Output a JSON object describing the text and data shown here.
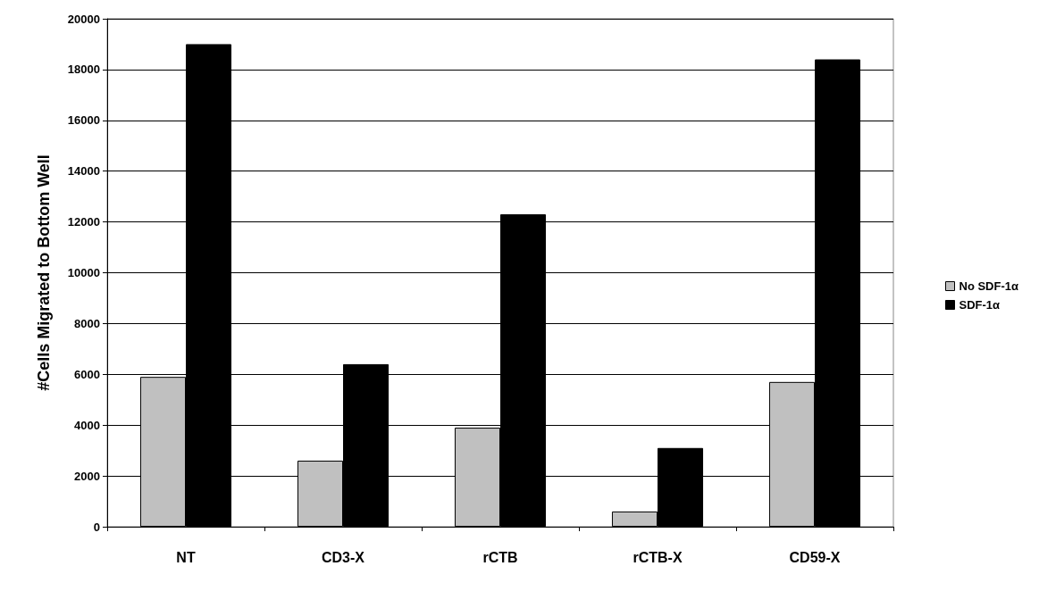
{
  "chart_data": {
    "type": "bar",
    "ylabel": "#Cells Migrated to Bottom Well",
    "categories": [
      "NT",
      "CD3-X",
      "rCTB",
      "rCTB-X",
      "CD59-X"
    ],
    "series": [
      {
        "name": "No SDF-1α",
        "color": "#c0c0c0",
        "values": [
          5900,
          2600,
          3900,
          600,
          5700
        ]
      },
      {
        "name": "SDF-1α",
        "color": "#000000",
        "values": [
          19000,
          6400,
          12300,
          3100,
          18400
        ]
      }
    ],
    "ylim": [
      0,
      20000
    ],
    "yticks": [
      0,
      2000,
      4000,
      6000,
      8000,
      10000,
      12000,
      14000,
      16000,
      18000,
      20000
    ],
    "grid": "y",
    "legend": "right"
  }
}
